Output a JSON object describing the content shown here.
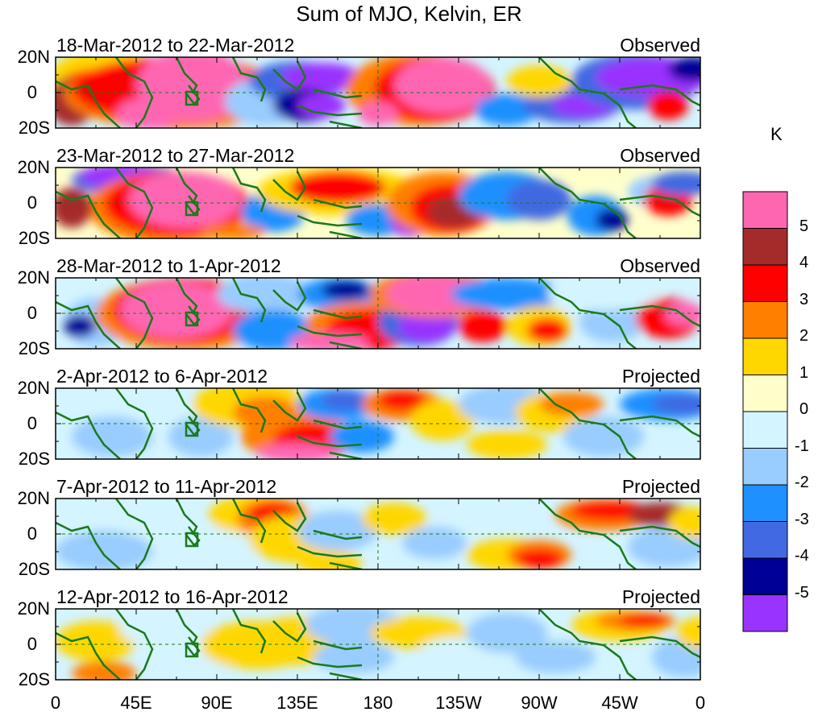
{
  "title": "Sum of MJO, Kelvin, ER",
  "panels": [
    {
      "period": "18-Mar-2012 to 22-Mar-2012",
      "tag": "Observed"
    },
    {
      "period": "23-Mar-2012 to 27-Mar-2012",
      "tag": "Observed"
    },
    {
      "period": "28-Mar-2012 to 1-Apr-2012",
      "tag": "Observed"
    },
    {
      "period": "2-Apr-2012 to 6-Apr-2012",
      "tag": "Projected"
    },
    {
      "period": "7-Apr-2012 to 11-Apr-2012",
      "tag": "Projected"
    },
    {
      "period": "12-Apr-2012 to 16-Apr-2012",
      "tag": "Projected"
    }
  ],
  "lat_labels": [
    "20N",
    "0",
    "20S"
  ],
  "lon_labels": [
    "0",
    "45E",
    "90E",
    "135E",
    "180",
    "135W",
    "90W",
    "45W",
    "0"
  ],
  "colorbar": {
    "unit": "K",
    "labels": [
      "5",
      "4",
      "3",
      "2",
      "1",
      "0",
      "-1",
      "-2",
      "-3",
      "-4",
      "-5"
    ],
    "colors": [
      "#ff66b2",
      "#a52a2a",
      "#ff0000",
      "#ff7f00",
      "#ffd700",
      "#ffffcc",
      "#d4f4ff",
      "#99ccff",
      "#1e90ff",
      "#4169e1",
      "#000096",
      "#9933ff"
    ]
  },
  "colors": {
    "coastline": "#1a7a1a",
    "reference_line": "#1a7a1a"
  }
}
